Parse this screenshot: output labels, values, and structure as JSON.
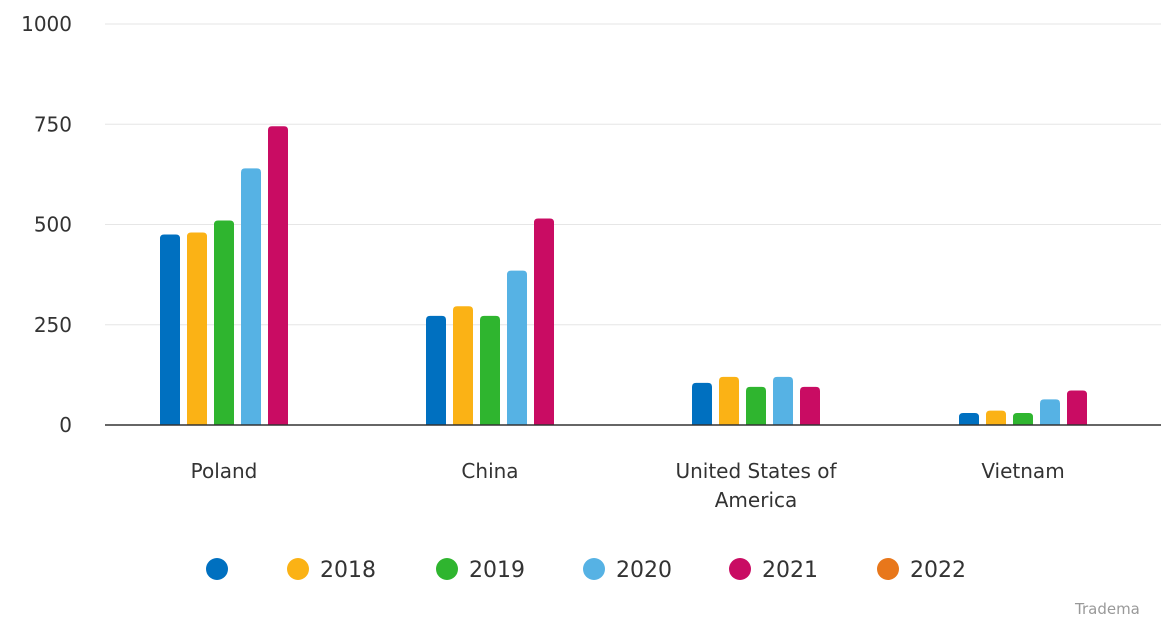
{
  "chart_data": {
    "type": "bar",
    "categories": [
      "Poland",
      "China",
      "United States of America",
      "Vietnam"
    ],
    "category_lines": [
      [
        "Poland"
      ],
      [
        "China"
      ],
      [
        "United States of",
        "America"
      ],
      [
        "Vietnam"
      ]
    ],
    "series": [
      {
        "name": "",
        "color": "#0070c0",
        "values": [
          475,
          272,
          105,
          30
        ]
      },
      {
        "name": "2018",
        "color": "#fbb215",
        "values": [
          480,
          296,
          120,
          36
        ]
      },
      {
        "name": "2019",
        "color": "#2fb52f",
        "values": [
          510,
          272,
          95,
          30
        ]
      },
      {
        "name": "2020",
        "color": "#56b2e4",
        "values": [
          640,
          385,
          120,
          64
        ]
      },
      {
        "name": "2021",
        "color": "#c90c63",
        "values": [
          745,
          515,
          95,
          86
        ]
      },
      {
        "name": "2022",
        "color": "#e8771b",
        "values": [
          null,
          null,
          null,
          null
        ]
      }
    ],
    "yticks": [
      0,
      250,
      500,
      750,
      1000
    ],
    "ylim": [
      0,
      1000
    ],
    "grid": true,
    "legend": "bottom-center",
    "credit": "Tradema"
  }
}
